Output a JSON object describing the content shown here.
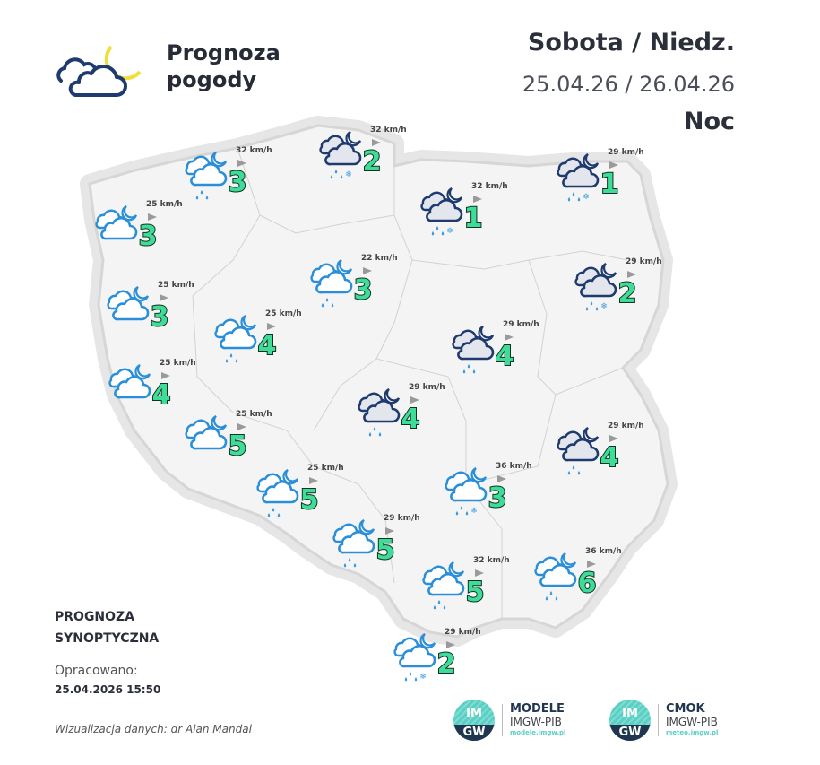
{
  "header": {
    "title_line1": "Prognoza",
    "title_line2": "pogody",
    "logo_icon": "cloud-moon-icon",
    "day": "Sobota / Niedz.",
    "dates": "25.04.26 / 26.04.26",
    "period": "Noc"
  },
  "footer": {
    "type_line1": "PROGNOZA",
    "type_line2": "SYNOPTYCZNA",
    "prepared_label": "Opracowano:",
    "prepared_date": "25.04.2026 15:50",
    "credit": "Wizualizacja danych: dr Alan Mandal"
  },
  "logos": [
    {
      "mark_top": "IM",
      "mark_bottom": "GW",
      "name": "MODELE",
      "org": "IMGW-PIB",
      "url": "modele.imgw.pl"
    },
    {
      "mark_top": "IM",
      "mark_bottom": "GW",
      "name": "CMOK",
      "org": "IMGW-PIB",
      "url": "meteo.imgw.pl"
    }
  ],
  "colors": {
    "map_fill": "#f4f4f4",
    "map_border": "#dcdcdc",
    "temp_fill": "#3ddc97",
    "temp_outline": "#123024",
    "icon_dark": "#1f3a6e",
    "icon_light": "#2a8fd8",
    "moon_logo": "#f1dd3c",
    "drop": "#3a9be0"
  },
  "stations": [
    {
      "temp": "2",
      "wind": "32 km/h",
      "icon": "dark",
      "precip": "rain-snow"
    },
    {
      "temp": "3",
      "wind": "32 km/h",
      "icon": "light",
      "precip": "rain"
    },
    {
      "temp": "3",
      "wind": "25 km/h",
      "icon": "light",
      "precip": "none"
    },
    {
      "temp": "1",
      "wind": "32 km/h",
      "icon": "dark",
      "precip": "rain-snow"
    },
    {
      "temp": "1",
      "wind": "29 km/h",
      "icon": "dark",
      "precip": "rain-snow"
    },
    {
      "temp": "3",
      "wind": "22 km/h",
      "icon": "light",
      "precip": "rain"
    },
    {
      "temp": "3",
      "wind": "25 km/h",
      "icon": "light",
      "precip": "none"
    },
    {
      "temp": "2",
      "wind": "29 km/h",
      "icon": "dark",
      "precip": "rain-snow"
    },
    {
      "temp": "4",
      "wind": "25 km/h",
      "icon": "light",
      "precip": "rain"
    },
    {
      "temp": "4",
      "wind": "29 km/h",
      "icon": "dark",
      "precip": "rain"
    },
    {
      "temp": "4",
      "wind": "25 km/h",
      "icon": "light",
      "precip": "none"
    },
    {
      "temp": "4",
      "wind": "29 km/h",
      "icon": "dark",
      "precip": "rain"
    },
    {
      "temp": "5",
      "wind": "25 km/h",
      "icon": "light",
      "precip": "none"
    },
    {
      "temp": "4",
      "wind": "29 km/h",
      "icon": "dark",
      "precip": "rain"
    },
    {
      "temp": "5",
      "wind": "25 km/h",
      "icon": "light",
      "precip": "rain"
    },
    {
      "temp": "3",
      "wind": "36 km/h",
      "icon": "light",
      "precip": "rain-snow"
    },
    {
      "temp": "5",
      "wind": "29 km/h",
      "icon": "light",
      "precip": "rain"
    },
    {
      "temp": "6",
      "wind": "36 km/h",
      "icon": "light",
      "precip": "rain"
    },
    {
      "temp": "5",
      "wind": "32 km/h",
      "icon": "light",
      "precip": "rain"
    },
    {
      "temp": "2",
      "wind": "29 km/h",
      "icon": "light",
      "precip": "rain-snow"
    }
  ]
}
